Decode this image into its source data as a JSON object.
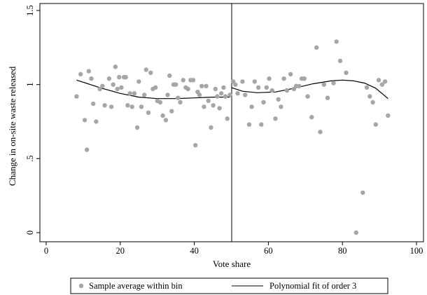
{
  "chart_data": {
    "type": "scatter",
    "xlabel": "Vote share",
    "ylabel": "Change in on-site waste released",
    "xlim": [
      0,
      100
    ],
    "ylim": [
      0,
      1.5
    ],
    "xticks": [
      0,
      20,
      40,
      60,
      80,
      100
    ],
    "yticks": [
      0,
      0.5,
      1,
      1.5
    ],
    "xtick_labels": [
      "0",
      "20",
      "40",
      "60",
      "80",
      "100"
    ],
    "ytick_labels": [
      "0",
      ".5",
      "1",
      "1.5"
    ],
    "grid": false,
    "cutoff": 50,
    "legend_position": "bottom",
    "series": [
      {
        "name": "Sample average within bin",
        "kind": "scatter",
        "color": "#a6a6a6",
        "points": [
          [
            8.2,
            0.92
          ],
          [
            9.3,
            1.07
          ],
          [
            10.4,
            0.76
          ],
          [
            11.0,
            0.56
          ],
          [
            11.5,
            1.09
          ],
          [
            12.2,
            1.04
          ],
          [
            12.7,
            0.87
          ],
          [
            13.5,
            0.75
          ],
          [
            14.5,
            0.97
          ],
          [
            15.2,
            0.99
          ],
          [
            15.8,
            0.86
          ],
          [
            17.0,
            1.04
          ],
          [
            17.6,
            0.85
          ],
          [
            18.1,
            1.0
          ],
          [
            18.7,
            1.12
          ],
          [
            19.2,
            0.97
          ],
          [
            19.7,
            1.05
          ],
          [
            20.3,
            0.98
          ],
          [
            21.0,
            1.05
          ],
          [
            21.5,
            1.05
          ],
          [
            22.0,
            0.86
          ],
          [
            22.6,
            0.94
          ],
          [
            23.2,
            0.85
          ],
          [
            23.8,
            0.94
          ],
          [
            24.6,
            0.71
          ],
          [
            25.0,
            1.02
          ],
          [
            25.7,
            0.85
          ],
          [
            26.5,
            0.93
          ],
          [
            27.0,
            1.1
          ],
          [
            27.6,
            0.81
          ],
          [
            28.2,
            1.08
          ],
          [
            28.8,
            0.97
          ],
          [
            29.5,
            0.98
          ],
          [
            30.0,
            0.89
          ],
          [
            30.8,
            0.88
          ],
          [
            31.5,
            0.79
          ],
          [
            32.3,
            0.76
          ],
          [
            32.8,
            0.93
          ],
          [
            33.3,
            1.06
          ],
          [
            33.9,
            0.82
          ],
          [
            34.4,
            1.0
          ],
          [
            35.0,
            1.0
          ],
          [
            35.6,
            0.91
          ],
          [
            36.2,
            0.88
          ],
          [
            37.0,
            1.03
          ],
          [
            37.7,
            0.98
          ],
          [
            38.3,
            0.97
          ],
          [
            39.0,
            1.03
          ],
          [
            39.7,
            1.03
          ],
          [
            40.3,
            0.59
          ],
          [
            40.9,
            0.95
          ],
          [
            41.4,
            0.93
          ],
          [
            42.0,
            0.99
          ],
          [
            42.6,
            0.85
          ],
          [
            43.2,
            0.99
          ],
          [
            43.8,
            0.89
          ],
          [
            44.5,
            0.71
          ],
          [
            45.1,
            0.86
          ],
          [
            45.7,
            0.97
          ],
          [
            46.2,
            0.92
          ],
          [
            46.8,
            0.84
          ],
          [
            47.3,
            0.94
          ],
          [
            47.9,
            0.98
          ],
          [
            48.4,
            0.92
          ],
          [
            48.9,
            0.77
          ],
          [
            49.6,
            0.93
          ],
          [
            50.5,
            1.02
          ],
          [
            51.1,
            1.0
          ],
          [
            51.7,
            0.94
          ],
          [
            53.0,
            1.02
          ],
          [
            53.7,
            0.93
          ],
          [
            54.8,
            0.73
          ],
          [
            55.5,
            0.85
          ],
          [
            56.3,
            1.02
          ],
          [
            57.3,
            0.98
          ],
          [
            58.1,
            0.73
          ],
          [
            58.7,
            0.88
          ],
          [
            59.5,
            0.98
          ],
          [
            60.2,
            1.04
          ],
          [
            61.0,
            0.96
          ],
          [
            61.9,
            0.77
          ],
          [
            62.7,
            0.9
          ],
          [
            63.4,
            0.85
          ],
          [
            64.2,
            1.04
          ],
          [
            65.0,
            0.96
          ],
          [
            66.0,
            1.07
          ],
          [
            66.9,
            0.97
          ],
          [
            67.5,
            0.99
          ],
          [
            68.3,
            0.99
          ],
          [
            69.0,
            1.04
          ],
          [
            69.7,
            1.04
          ],
          [
            70.6,
            0.92
          ],
          [
            71.7,
            0.78
          ],
          [
            73.0,
            1.25
          ],
          [
            74.0,
            0.68
          ],
          [
            75.0,
            1.0
          ],
          [
            76.0,
            0.91
          ],
          [
            77.6,
            1.01
          ],
          [
            78.4,
            1.29
          ],
          [
            79.4,
            1.16
          ],
          [
            81.0,
            1.08
          ],
          [
            83.7,
            0.0
          ],
          [
            85.5,
            0.27
          ],
          [
            86.6,
            0.98
          ],
          [
            87.4,
            0.92
          ],
          [
            88.2,
            0.88
          ],
          [
            89.0,
            0.73
          ],
          [
            89.8,
            1.03
          ],
          [
            90.7,
            1.0
          ],
          [
            91.5,
            1.02
          ],
          [
            92.3,
            0.79
          ]
        ]
      },
      {
        "name": "Polynomial fit of order 3",
        "kind": "line",
        "color": "#000000",
        "segments": [
          [
            [
              8.2,
              1.03
            ],
            [
              15,
              0.975
            ],
            [
              20,
              0.94
            ],
            [
              25,
              0.915
            ],
            [
              30,
              0.905
            ],
            [
              35,
              0.905
            ],
            [
              40,
              0.91
            ],
            [
              45,
              0.915
            ],
            [
              49.6,
              0.915
            ]
          ],
          [
            [
              50.0,
              0.98
            ],
            [
              53,
              0.955
            ],
            [
              57,
              0.945
            ],
            [
              62,
              0.95
            ],
            [
              67,
              0.975
            ],
            [
              72,
              1.005
            ],
            [
              77,
              1.025
            ],
            [
              80,
              1.03
            ],
            [
              83,
              1.025
            ],
            [
              86,
              1.01
            ],
            [
              89,
              0.975
            ],
            [
              92.3,
              0.905
            ]
          ]
        ]
      }
    ]
  }
}
